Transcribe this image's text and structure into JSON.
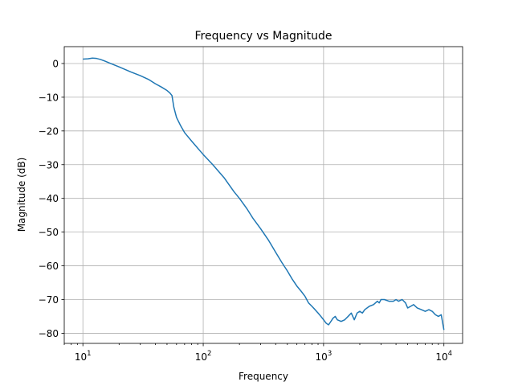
{
  "chart_data": {
    "type": "line",
    "title": "Frequency vs Magnitude",
    "xlabel": "Frequency",
    "ylabel": "Magnitude (dB)",
    "xscale": "log",
    "xlim": [
      7.0,
      14300
    ],
    "ylim": [
      -83,
      5
    ],
    "grid": true,
    "x_ticks": [
      {
        "value": 10,
        "base": "10",
        "exp": "1"
      },
      {
        "value": 100,
        "base": "10",
        "exp": "2"
      },
      {
        "value": 1000,
        "base": "10",
        "exp": "3"
      },
      {
        "value": 10000,
        "base": "10",
        "exp": "4"
      }
    ],
    "y_ticks": [
      0,
      -10,
      -20,
      -30,
      -40,
      -50,
      -60,
      -70,
      -80
    ],
    "y_tick_labels": [
      "0",
      "−10",
      "−20",
      "−30",
      "−40",
      "−50",
      "−60",
      "−70",
      "−80"
    ],
    "series": [
      {
        "name": "magnitude",
        "color": "#1f77b4",
        "points": [
          [
            10,
            1.3
          ],
          [
            11,
            1.4
          ],
          [
            12,
            1.6
          ],
          [
            13,
            1.5
          ],
          [
            14,
            1.2
          ],
          [
            15,
            0.8
          ],
          [
            17,
            0.0
          ],
          [
            20,
            -1.0
          ],
          [
            25,
            -2.5
          ],
          [
            30,
            -3.6
          ],
          [
            35,
            -4.7
          ],
          [
            40,
            -6.0
          ],
          [
            45,
            -7.0
          ],
          [
            50,
            -8.0
          ],
          [
            53,
            -8.8
          ],
          [
            55,
            -9.5
          ],
          [
            57,
            -13.0
          ],
          [
            60,
            -16.0
          ],
          [
            65,
            -18.5
          ],
          [
            70,
            -20.5
          ],
          [
            80,
            -23.0
          ],
          [
            100,
            -27.0
          ],
          [
            120,
            -30.0
          ],
          [
            150,
            -34.0
          ],
          [
            180,
            -38.0
          ],
          [
            200,
            -40.0
          ],
          [
            230,
            -43.0
          ],
          [
            260,
            -46.0
          ],
          [
            300,
            -49.0
          ],
          [
            350,
            -52.5
          ],
          [
            400,
            -56.0
          ],
          [
            450,
            -59.0
          ],
          [
            500,
            -61.5
          ],
          [
            550,
            -64.0
          ],
          [
            600,
            -66.0
          ],
          [
            650,
            -67.5
          ],
          [
            700,
            -69.0
          ],
          [
            750,
            -71.0
          ],
          [
            800,
            -72.0
          ],
          [
            850,
            -73.0
          ],
          [
            900,
            -74.0
          ],
          [
            950,
            -75.0
          ],
          [
            1000,
            -76.0
          ],
          [
            1050,
            -77.0
          ],
          [
            1100,
            -77.5
          ],
          [
            1150,
            -76.5
          ],
          [
            1200,
            -75.5
          ],
          [
            1250,
            -75.0
          ],
          [
            1300,
            -76.0
          ],
          [
            1400,
            -76.5
          ],
          [
            1500,
            -76.0
          ],
          [
            1600,
            -75.0
          ],
          [
            1700,
            -74.0
          ],
          [
            1800,
            -76.0
          ],
          [
            1900,
            -74.0
          ],
          [
            2000,
            -73.5
          ],
          [
            2100,
            -74.0
          ],
          [
            2200,
            -73.0
          ],
          [
            2400,
            -72.0
          ],
          [
            2600,
            -71.5
          ],
          [
            2800,
            -70.5
          ],
          [
            2900,
            -71.0
          ],
          [
            3000,
            -70.0
          ],
          [
            3200,
            -70.0
          ],
          [
            3500,
            -70.5
          ],
          [
            3800,
            -70.5
          ],
          [
            4000,
            -70.0
          ],
          [
            4200,
            -70.5
          ],
          [
            4500,
            -70.0
          ],
          [
            4800,
            -71.0
          ],
          [
            5000,
            -72.5
          ],
          [
            5300,
            -72.0
          ],
          [
            5600,
            -71.5
          ],
          [
            6000,
            -72.5
          ],
          [
            6500,
            -73.0
          ],
          [
            7000,
            -73.5
          ],
          [
            7500,
            -73.0
          ],
          [
            8000,
            -73.5
          ],
          [
            8500,
            -74.5
          ],
          [
            9000,
            -75.0
          ],
          [
            9500,
            -74.5
          ],
          [
            10000,
            -79.0
          ]
        ]
      }
    ]
  }
}
